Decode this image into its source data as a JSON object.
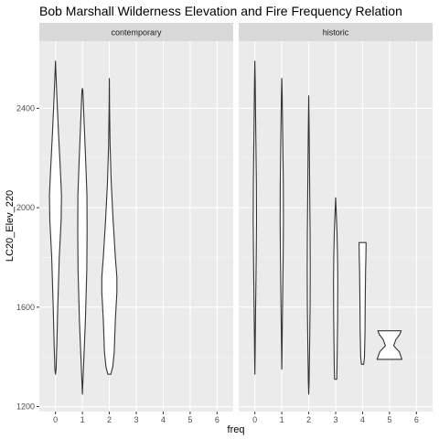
{
  "chart_data": {
    "type": "violin",
    "title": "Bob Marshall Wilderness Elevation and Fire Frequency Relation",
    "xlabel": "freq",
    "ylabel": "LC20_Elev_220",
    "x_ticks": [
      "0",
      "1",
      "2",
      "3",
      "4",
      "5",
      "6"
    ],
    "y_ticks": [
      1200,
      1600,
      2000,
      2400
    ],
    "y_tick_labels": [
      "1200",
      "1600",
      "2000",
      "2400"
    ],
    "xlim": [
      -0.6,
      6.6
    ],
    "ylim": [
      1180,
      2670
    ],
    "grid": true,
    "panels": [
      {
        "label": "contemporary",
        "violins": [
          {
            "freq": 0,
            "halfwidth": 0.28,
            "profile": [
              [
                1330,
                0.0
              ],
              [
                1350,
                0.08
              ],
              [
                1450,
                0.18
              ],
              [
                1600,
                0.3
              ],
              [
                1800,
                0.5
              ],
              [
                1950,
                0.75
              ],
              [
                2050,
                0.8
              ],
              [
                2150,
                0.65
              ],
              [
                2300,
                0.4
              ],
              [
                2450,
                0.18
              ],
              [
                2550,
                0.05
              ],
              [
                2590,
                0.0
              ]
            ]
          },
          {
            "freq": 1,
            "halfwidth": 0.28,
            "profile": [
              [
                1250,
                0.0
              ],
              [
                1290,
                0.05
              ],
              [
                1400,
                0.2
              ],
              [
                1550,
                0.4
              ],
              [
                1750,
                0.58
              ],
              [
                1900,
                0.62
              ],
              [
                2050,
                0.6
              ],
              [
                2200,
                0.42
              ],
              [
                2350,
                0.22
              ],
              [
                2470,
                0.06
              ],
              [
                2480,
                0.0
              ]
            ]
          },
          {
            "freq": 2,
            "halfwidth": 0.28,
            "profile": [
              [
                1330,
                0.2
              ],
              [
                1360,
                0.45
              ],
              [
                1420,
                0.65
              ],
              [
                1550,
                0.8
              ],
              [
                1660,
                1.0
              ],
              [
                1720,
                1.0
              ],
              [
                1800,
                0.8
              ],
              [
                1950,
                0.5
              ],
              [
                2100,
                0.25
              ],
              [
                2250,
                0.1
              ],
              [
                2400,
                0.03
              ],
              [
                2520,
                0.0
              ]
            ]
          }
        ]
      },
      {
        "label": "historic",
        "violins": [
          {
            "freq": 0,
            "halfwidth": 0.28,
            "profile": [
              [
                1330,
                0.0
              ],
              [
                1400,
                0.03
              ],
              [
                1600,
                0.1
              ],
              [
                1800,
                0.18
              ],
              [
                1950,
                0.22
              ],
              [
                2100,
                0.2
              ],
              [
                2300,
                0.12
              ],
              [
                2500,
                0.05
              ],
              [
                2590,
                0.0
              ]
            ]
          },
          {
            "freq": 1,
            "halfwidth": 0.28,
            "profile": [
              [
                1350,
                0.0
              ],
              [
                1450,
                0.04
              ],
              [
                1650,
                0.12
              ],
              [
                1800,
                0.18
              ],
              [
                1950,
                0.22
              ],
              [
                2100,
                0.2
              ],
              [
                2300,
                0.12
              ],
              [
                2450,
                0.05
              ],
              [
                2520,
                0.0
              ]
            ]
          },
          {
            "freq": 2,
            "halfwidth": 0.28,
            "profile": [
              [
                1250,
                0.0
              ],
              [
                1300,
                0.05
              ],
              [
                1450,
                0.12
              ],
              [
                1600,
                0.18
              ],
              [
                1750,
                0.2
              ],
              [
                1900,
                0.18
              ],
              [
                2100,
                0.12
              ],
              [
                2300,
                0.06
              ],
              [
                2450,
                0.0
              ]
            ]
          },
          {
            "freq": 3,
            "halfwidth": 0.28,
            "profile": [
              [
                1310,
                0.15
              ],
              [
                1400,
                0.2
              ],
              [
                1550,
                0.26
              ],
              [
                1700,
                0.28
              ],
              [
                1800,
                0.25
              ],
              [
                1900,
                0.18
              ],
              [
                1980,
                0.08
              ],
              [
                2040,
                0.0
              ]
            ]
          },
          {
            "freq": 4,
            "halfwidth": 0.28,
            "profile": [
              [
                1370,
                0.15
              ],
              [
                1400,
                0.25
              ],
              [
                1500,
                0.32
              ],
              [
                1650,
                0.36
              ],
              [
                1750,
                0.4
              ],
              [
                1800,
                0.44
              ],
              [
                1850,
                0.46
              ],
              [
                1860,
                0.46
              ]
            ]
          },
          {
            "freq": 5,
            "halfwidth": 0.28,
            "profile": [
              [
                1390,
                1.65
              ],
              [
                1420,
                1.3
              ],
              [
                1445,
                0.55
              ],
              [
                1470,
                0.85
              ],
              [
                1490,
                1.35
              ],
              [
                1505,
                1.55
              ]
            ]
          }
        ]
      }
    ]
  }
}
